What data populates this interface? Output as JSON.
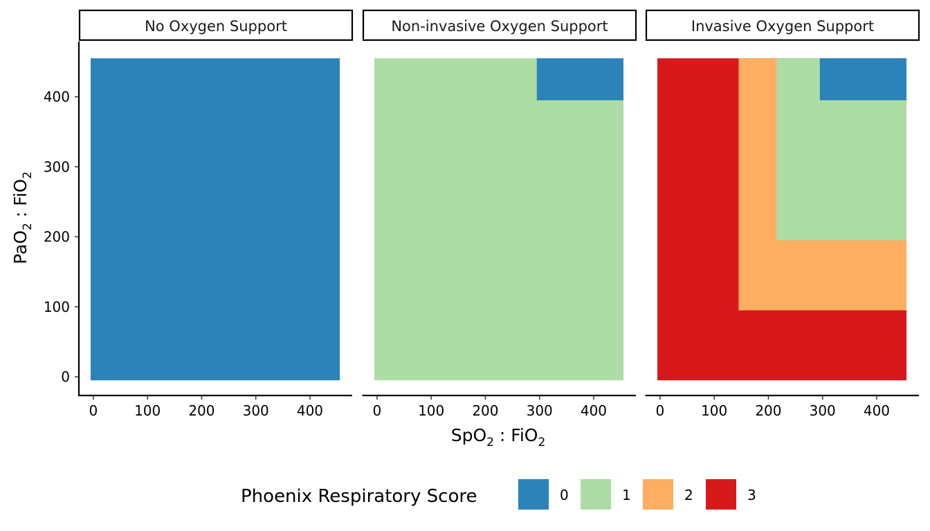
{
  "chart_data": {
    "type": "heatmap",
    "title": "",
    "xlabel": "SpO₂ : FiO₂",
    "ylabel": "PaO₂ : FiO₂",
    "xlabel_parts": {
      "a": "SpO",
      "sub": "2",
      "b": " : FiO",
      "sub2": "2"
    },
    "ylabel_parts": {
      "a": "PaO",
      "sub": "2",
      "b": " : FiO",
      "sub2": "2"
    },
    "xlim": [
      -5,
      455
    ],
    "ylim": [
      -5,
      455
    ],
    "x_ticks": [
      0,
      100,
      200,
      300,
      400
    ],
    "y_ticks": [
      0,
      100,
      200,
      300,
      400
    ],
    "x_tick_labels": [
      "0",
      "100",
      "200",
      "300",
      "400"
    ],
    "y_tick_labels": [
      "0",
      "100",
      "200",
      "300",
      "400"
    ],
    "grid": false,
    "legend_position": "bottom",
    "legend_title": "Phoenix Respiratory Score",
    "legend": [
      {
        "label": "0",
        "score": 0,
        "color": "#2C83B9"
      },
      {
        "label": "1",
        "score": 1,
        "color": "#ABDDA4"
      },
      {
        "label": "2",
        "score": 2,
        "color": "#FDAE61"
      },
      {
        "label": "3",
        "score": 3,
        "color": "#D7191C"
      }
    ],
    "facets": [
      {
        "name": "No Oxygen Support",
        "regions": [
          {
            "x": [
              -5,
              455
            ],
            "y": [
              -5,
              455
            ],
            "score": 0
          }
        ]
      },
      {
        "name": "Non-invasive Oxygen Support",
        "regions": [
          {
            "x": [
              -5,
              455
            ],
            "y": [
              -5,
              455
            ],
            "score": 1
          },
          {
            "x": [
              295,
              455
            ],
            "y": [
              395,
              455
            ],
            "score": 0
          }
        ]
      },
      {
        "name": "Invasive Oxygen Support",
        "regions": [
          {
            "x": [
              -5,
              455
            ],
            "y": [
              -5,
              455
            ],
            "score": 3
          },
          {
            "x": [
              145,
              455
            ],
            "y": [
              95,
              455
            ],
            "score": 2
          },
          {
            "x": [
              215,
              455
            ],
            "y": [
              195,
              455
            ],
            "score": 1
          },
          {
            "x": [
              295,
              455
            ],
            "y": [
              395,
              455
            ],
            "score": 0
          }
        ]
      }
    ]
  }
}
